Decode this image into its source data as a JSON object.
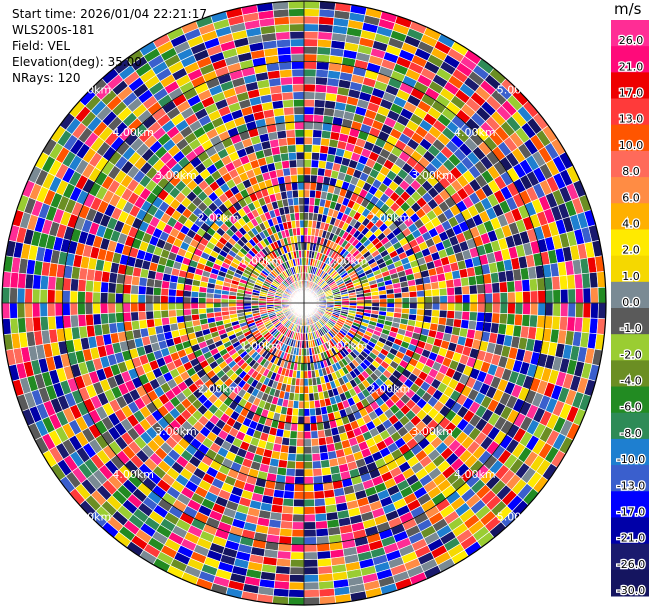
{
  "metadata": {
    "start_time": "Start time: 2026/01/04 22:21:17",
    "station": "WLS200s-181",
    "field": "Field: VEL",
    "elevation": "Elevation(deg): 35.00",
    "nrays": "NRays: 120"
  },
  "colorbar": {
    "unit": "m/s",
    "bins": [
      {
        "label": "26.0",
        "color": "#ff2d95"
      },
      {
        "label": "21.0",
        "color": "#ff0a7a"
      },
      {
        "label": "17.0",
        "color": "#ee0000"
      },
      {
        "label": "13.0",
        "color": "#ff3a3a"
      },
      {
        "label": "10.0",
        "color": "#ff5500"
      },
      {
        "label": "8.0",
        "color": "#ff6a5a"
      },
      {
        "label": "6.0",
        "color": "#ff8c44"
      },
      {
        "label": "4.0",
        "color": "#ffb000"
      },
      {
        "label": "2.0",
        "color": "#ffea00"
      },
      {
        "label": "1.0",
        "color": "#f5d800"
      },
      {
        "label": "0.0",
        "color": "#7a8a94"
      },
      {
        "label": "-1.0",
        "color": "#5a5a5a"
      },
      {
        "label": "-2.0",
        "color": "#9acd32"
      },
      {
        "label": "-4.0",
        "color": "#6b8e23"
      },
      {
        "label": "-6.0",
        "color": "#228b22"
      },
      {
        "label": "-8.0",
        "color": "#2e8b57"
      },
      {
        "label": "-10.0",
        "color": "#1e7fd0"
      },
      {
        "label": "-13.0",
        "color": "#3a5fcd"
      },
      {
        "label": "-17.0",
        "color": "#0000ff"
      },
      {
        "label": "-21.0",
        "color": "#0000a8"
      },
      {
        "label": "-26.0",
        "color": "#1a1a6e"
      },
      {
        "label": "-30.0",
        "color": "#151560"
      }
    ]
  },
  "chart_data": {
    "type": "heatmap",
    "projection": "polar-ppi",
    "field": "VEL",
    "unit": "m/s",
    "nrays": 120,
    "range_max_km": 5.0,
    "range_ring_labels": [
      "1.00km",
      "2.00km",
      "3.00km",
      "4.00km",
      "5.00km"
    ],
    "range_rings_km": [
      1,
      2,
      3,
      4,
      5
    ],
    "value_range": [
      -30,
      30
    ],
    "grid": true
  }
}
